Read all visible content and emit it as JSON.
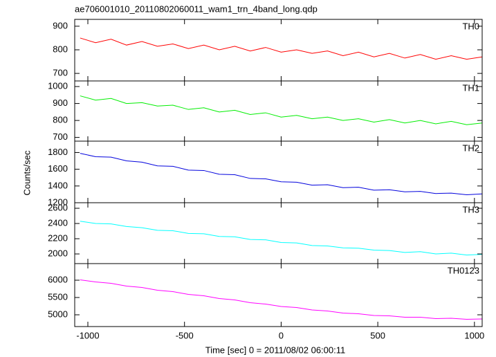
{
  "title": "ae706001010_20110802060011_wam1_trn_4band_long.qdp",
  "xlabel": "Time [sec] 0 = 2011/08/02 06:00:11",
  "ylabel": "Counts/sec",
  "chart_data": [
    {
      "type": "line",
      "label": "TH0",
      "color": "#ff0000",
      "x": [
        -1040,
        -960,
        -880,
        -800,
        -720,
        -640,
        -560,
        -480,
        -400,
        -320,
        -240,
        -160,
        -80,
        0,
        80,
        160,
        240,
        320,
        400,
        480,
        560,
        640,
        720,
        800,
        880,
        960,
        1040
      ],
      "values": [
        850,
        830,
        845,
        820,
        835,
        815,
        825,
        805,
        820,
        800,
        815,
        795,
        810,
        790,
        800,
        785,
        795,
        775,
        790,
        770,
        785,
        765,
        780,
        760,
        775,
        760,
        770
      ],
      "xlim": [
        -1068,
        1040
      ],
      "xticks": [
        -1000,
        -500,
        0,
        500,
        1000
      ],
      "ylim": [
        668,
        929
      ],
      "yticks": [
        700,
        800,
        900
      ]
    },
    {
      "type": "line",
      "label": "TH1",
      "color": "#00ee00",
      "x": [
        -1040,
        -960,
        -880,
        -800,
        -720,
        -640,
        -560,
        -480,
        -400,
        -320,
        -240,
        -160,
        -80,
        0,
        80,
        160,
        240,
        320,
        400,
        480,
        560,
        640,
        720,
        800,
        880,
        960,
        1040
      ],
      "values": [
        945,
        920,
        930,
        900,
        905,
        885,
        890,
        865,
        875,
        850,
        860,
        835,
        845,
        820,
        830,
        810,
        820,
        800,
        810,
        790,
        805,
        785,
        800,
        780,
        795,
        775,
        785
      ],
      "xlim": [
        -1068,
        1040
      ],
      "xticks": [
        -1000,
        -500,
        0,
        500,
        1000
      ],
      "ylim": [
        678,
        1033
      ],
      "yticks": [
        700,
        800,
        900,
        1000
      ]
    },
    {
      "type": "line",
      "label": "TH2",
      "color": "#0000dd",
      "x": [
        -1040,
        -960,
        -880,
        -800,
        -720,
        -640,
        -560,
        -480,
        -400,
        -320,
        -240,
        -160,
        -80,
        0,
        80,
        160,
        240,
        320,
        400,
        480,
        560,
        640,
        720,
        800,
        880,
        960,
        1040
      ],
      "values": [
        1790,
        1750,
        1745,
        1700,
        1685,
        1640,
        1635,
        1590,
        1585,
        1540,
        1535,
        1490,
        1485,
        1450,
        1445,
        1410,
        1415,
        1380,
        1385,
        1350,
        1355,
        1330,
        1335,
        1310,
        1315,
        1295,
        1305
      ],
      "xlim": [
        -1068,
        1040
      ],
      "xticks": [
        -1000,
        -500,
        0,
        500,
        1000
      ],
      "ylim": [
        1200,
        1936
      ],
      "yticks": [
        1200,
        1400,
        1600,
        1800
      ]
    },
    {
      "type": "line",
      "label": "TH3",
      "color": "#00ffff",
      "x": [
        -1040,
        -960,
        -880,
        -800,
        -720,
        -640,
        -560,
        -480,
        -400,
        -320,
        -240,
        -160,
        -80,
        0,
        80,
        160,
        240,
        320,
        400,
        480,
        560,
        640,
        720,
        800,
        880,
        960,
        1040
      ],
      "values": [
        2430,
        2400,
        2395,
        2360,
        2345,
        2310,
        2305,
        2270,
        2265,
        2230,
        2225,
        2190,
        2185,
        2150,
        2145,
        2110,
        2105,
        2080,
        2075,
        2050,
        2045,
        2020,
        2030,
        2000,
        2010,
        1985,
        1995
      ],
      "xlim": [
        -1068,
        1040
      ],
      "xticks": [
        -1000,
        -500,
        0,
        500,
        1000
      ],
      "ylim": [
        1873,
        2673
      ],
      "yticks": [
        2000,
        2200,
        2400,
        2600
      ]
    },
    {
      "type": "line",
      "label": "TH0123",
      "color": "#ff00ff",
      "x": [
        -1040,
        -960,
        -880,
        -800,
        -720,
        -640,
        -560,
        -480,
        -400,
        -320,
        -240,
        -160,
        -80,
        0,
        80,
        160,
        240,
        320,
        400,
        480,
        560,
        640,
        720,
        800,
        880,
        960,
        1040
      ],
      "values": [
        6010,
        5950,
        5910,
        5830,
        5790,
        5710,
        5670,
        5590,
        5550,
        5470,
        5430,
        5350,
        5310,
        5240,
        5210,
        5140,
        5110,
        5050,
        5030,
        4980,
        4970,
        4930,
        4930,
        4890,
        4900,
        4870,
        4880
      ],
      "xlim": [
        -1068,
        1040
      ],
      "xticks": [
        -1000,
        -500,
        0,
        500,
        1000
      ],
      "ylim": [
        4660,
        6480
      ],
      "yticks": [
        5000,
        5500,
        6000
      ]
    }
  ]
}
